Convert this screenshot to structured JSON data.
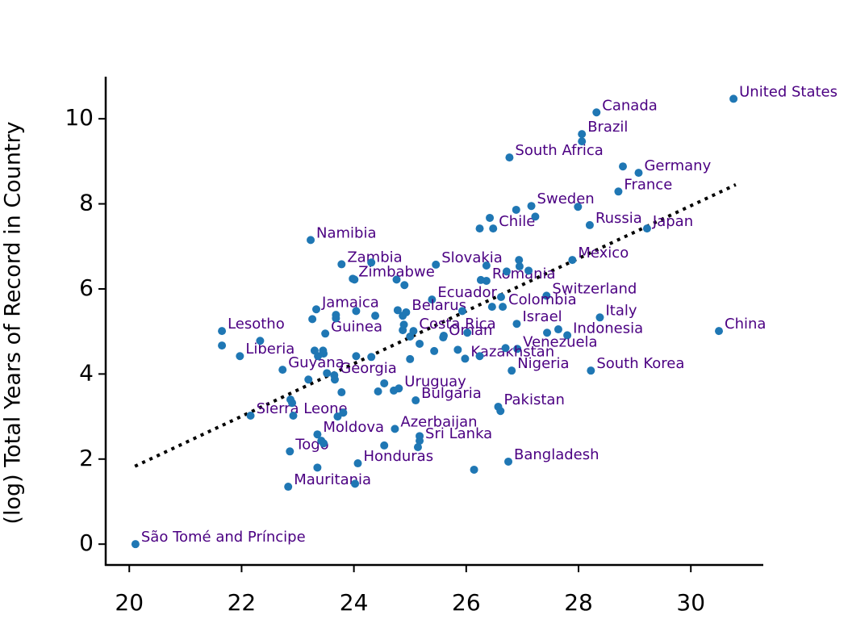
{
  "chart_data": {
    "type": "scatter",
    "y_label": "(log) Total Years of Record in Country",
    "xlim": [
      19.58,
      31.29
    ],
    "ylim": [
      -0.49,
      10.99
    ],
    "xticks": [
      20,
      22,
      24,
      26,
      28,
      30
    ],
    "yticks": [
      0,
      2,
      4,
      6,
      8,
      10
    ],
    "point_color": "#1f77b4",
    "label_color": "#4b0082",
    "trendline": {
      "x": [
        20.1,
        30.8
      ],
      "y": [
        1.83,
        8.45
      ],
      "color": "#000000"
    },
    "series": [
      {
        "x": [
          30.76,
          28.32,
          28.06,
          26.77,
          29.07,
          28.71,
          27.16,
          28.2,
          29.22,
          26.48,
          23.23,
          27.89,
          23.78,
          25.46,
          23.98,
          26.36,
          27.43,
          25.39,
          26.65,
          23.33,
          24.93,
          28.38,
          26.9,
          21.65,
          23.49,
          25.06,
          30.5,
          27.8,
          25.59,
          26.91,
          25.98,
          21.97,
          22.73,
          26.81,
          28.22,
          23.65,
          24.8,
          25.1,
          26.57,
          22.16,
          23.35,
          24.73,
          25.17,
          22.86,
          24.07,
          26.75,
          22.83,
          20.11,
          28.06,
          28.79,
          27.99,
          26.89,
          27.23,
          26.42,
          26.24,
          26.36,
          26.94,
          26.95,
          27.11,
          26.72,
          24.31,
          24.01,
          26.26,
          24.76,
          24.9,
          26.62,
          26.46,
          25.93,
          24.78,
          24.87,
          24.04,
          24.38,
          23.68,
          23.26,
          23.68,
          24.87,
          24.89,
          25.0,
          25.17,
          25.6,
          26.02,
          27.44,
          27.64,
          22.33,
          21.65,
          23.3,
          23.45,
          23.46,
          23.36,
          24.04,
          24.31,
          25.43,
          25.85,
          26.7,
          26.24,
          25.0,
          23.52,
          23.19,
          23.66,
          23.78,
          24.54,
          24.43,
          24.71,
          22.87,
          22.9,
          26.61,
          22.92,
          23.71,
          23.81,
          23.42,
          23.46,
          24.54,
          25.17,
          25.14,
          23.35,
          26.14,
          24.02
        ],
        "y": [
          10.47,
          10.15,
          9.64,
          9.09,
          8.73,
          8.29,
          7.95,
          7.5,
          7.42,
          7.42,
          7.15,
          6.68,
          6.58,
          6.57,
          6.24,
          6.19,
          5.84,
          5.75,
          5.58,
          5.52,
          5.45,
          5.33,
          5.18,
          5.01,
          4.95,
          5.01,
          5.01,
          4.91,
          4.86,
          4.59,
          4.36,
          4.42,
          4.1,
          4.08,
          4.08,
          3.97,
          3.66,
          3.38,
          3.23,
          3.02,
          2.58,
          2.71,
          2.43,
          2.18,
          1.9,
          1.94,
          1.35,
          0.0,
          9.47,
          8.88,
          7.93,
          7.86,
          7.7,
          7.67,
          7.42,
          6.55,
          6.68,
          6.53,
          6.43,
          6.41,
          6.62,
          6.22,
          6.21,
          6.22,
          6.09,
          5.81,
          5.58,
          5.48,
          5.5,
          5.37,
          5.48,
          5.37,
          5.39,
          5.29,
          5.31,
          5.03,
          5.16,
          4.88,
          4.71,
          4.9,
          4.97,
          4.97,
          5.05,
          4.78,
          4.67,
          4.55,
          4.55,
          4.48,
          4.42,
          4.42,
          4.4,
          4.54,
          4.57,
          4.61,
          4.42,
          4.35,
          4.02,
          3.87,
          3.87,
          3.57,
          3.78,
          3.59,
          3.61,
          3.4,
          3.32,
          3.13,
          3.02,
          3.0,
          3.09,
          2.43,
          2.37,
          2.32,
          2.54,
          2.28,
          1.8,
          1.75,
          1.42
        ],
        "labels": [
          "United States",
          "Canada",
          "Brazil",
          "South Africa",
          "Germany",
          "France",
          "Sweden",
          "Russia",
          "Japan",
          "Chile",
          "Namibia",
          "Mexico",
          "Zambia",
          "Slovakia",
          "Zimbabwe",
          "Romania",
          "Switzerland",
          "Ecuador",
          "Colombia",
          "Jamaica",
          "Belarus",
          "Italy",
          "Israel",
          "Lesotho",
          "Guinea",
          "Costa Rica",
          "China",
          "Indonesia",
          "Oman",
          "Venezuela",
          "Kazakhstan",
          "Liberia",
          "Guyana",
          "Nigeria",
          "South Korea",
          "Georgia",
          "Uruguay",
          "Bulgaria",
          "Pakistan",
          "Sierra Leone",
          "Moldova",
          "Azerbaijan",
          "Sri Lanka",
          "Togo",
          "Honduras",
          "Bangladesh",
          "Mauritania",
          "São Tomé and Príncipe",
          null,
          null,
          null,
          null,
          null,
          null,
          null,
          null,
          null,
          null,
          null,
          null,
          null,
          null,
          null,
          null,
          null,
          null,
          null,
          null,
          null,
          null,
          null,
          null,
          null,
          null,
          null,
          null,
          null,
          null,
          null,
          null,
          null,
          null,
          null,
          null,
          null,
          null,
          null,
          null,
          null,
          null,
          null,
          null,
          null,
          null,
          null,
          null,
          null,
          null,
          null,
          null,
          null,
          null,
          null,
          null,
          null,
          null,
          null,
          null,
          null,
          null,
          null,
          null,
          null,
          null,
          null
        ]
      }
    ]
  }
}
